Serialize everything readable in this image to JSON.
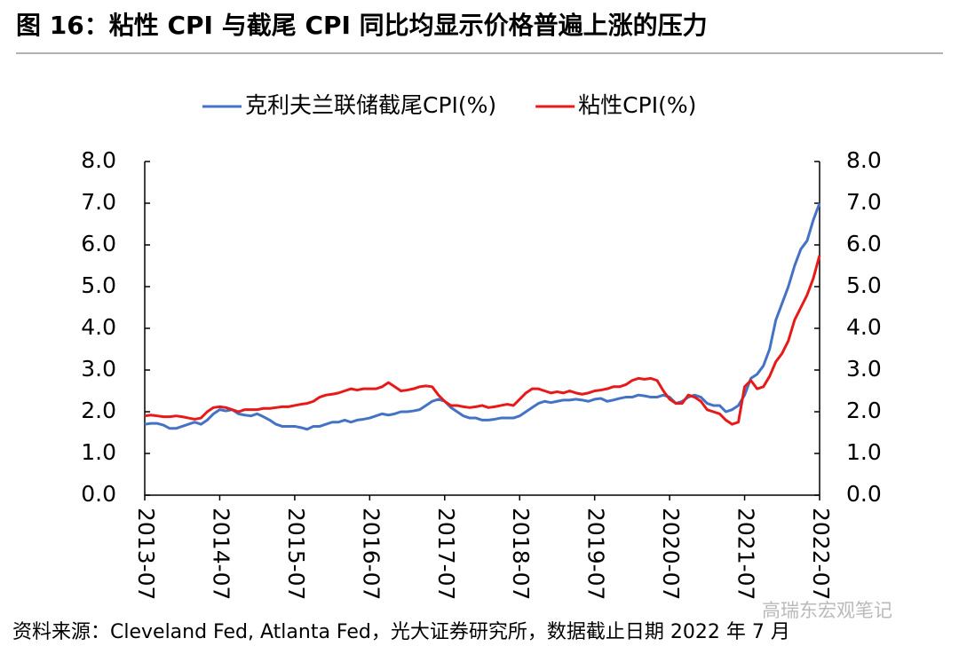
{
  "chart_data": {
    "type": "line",
    "title": "图 16：粘性 CPI 与截尾 CPI 同比均显示价格普遍上涨的压力",
    "source": "资料来源：Cleveland Fed, Atlanta Fed，光大证券研究所，数据截止日期 2022 年 7 月",
    "watermark": "高瑞东宏观笔记",
    "categories": [
      "2013-07",
      null,
      null,
      null,
      null,
      null,
      null,
      null,
      null,
      null,
      null,
      null,
      "2014-07",
      null,
      null,
      null,
      null,
      null,
      null,
      null,
      null,
      null,
      null,
      null,
      "2015-07",
      null,
      null,
      null,
      null,
      null,
      null,
      null,
      null,
      null,
      null,
      null,
      "2016-07",
      null,
      null,
      null,
      null,
      null,
      null,
      null,
      null,
      null,
      null,
      null,
      "2017-07",
      null,
      null,
      null,
      null,
      null,
      null,
      null,
      null,
      null,
      null,
      null,
      "2018-07",
      null,
      null,
      null,
      null,
      null,
      null,
      null,
      null,
      null,
      null,
      null,
      "2019-07",
      null,
      null,
      null,
      null,
      null,
      null,
      null,
      null,
      null,
      null,
      null,
      "2020-07",
      null,
      null,
      null,
      null,
      null,
      null,
      null,
      null,
      null,
      null,
      null,
      "2021-07",
      null,
      null,
      null,
      null,
      null,
      null,
      null,
      null,
      null,
      null,
      null,
      "2022-07"
    ],
    "series": [
      {
        "name": "克利夫兰联储截尾CPI(%)",
        "color": "#4472c4",
        "values": [
          1.7,
          1.72,
          1.72,
          1.68,
          1.6,
          1.6,
          1.65,
          1.7,
          1.75,
          1.7,
          1.8,
          1.95,
          2.05,
          2.02,
          2.05,
          1.95,
          1.92,
          1.9,
          1.95,
          1.88,
          1.8,
          1.7,
          1.65,
          1.65,
          1.65,
          1.62,
          1.58,
          1.65,
          1.65,
          1.7,
          1.75,
          1.75,
          1.8,
          1.75,
          1.8,
          1.82,
          1.85,
          1.9,
          1.95,
          1.92,
          1.95,
          2.0,
          2.0,
          2.02,
          2.05,
          2.15,
          2.25,
          2.3,
          2.25,
          2.1,
          2.0,
          1.9,
          1.85,
          1.85,
          1.8,
          1.8,
          1.82,
          1.85,
          1.85,
          1.85,
          1.9,
          2.0,
          2.1,
          2.2,
          2.25,
          2.22,
          2.25,
          2.28,
          2.28,
          2.3,
          2.28,
          2.25,
          2.3,
          2.32,
          2.25,
          2.28,
          2.32,
          2.35,
          2.35,
          2.4,
          2.38,
          2.35,
          2.35,
          2.4,
          2.35,
          2.2,
          2.25,
          2.35,
          2.4,
          2.35,
          2.2,
          2.15,
          2.15,
          2.0,
          2.05,
          2.15,
          2.4,
          2.8,
          2.9,
          3.1,
          3.5,
          4.2,
          4.6,
          5.0,
          5.5,
          5.9,
          6.1,
          6.6,
          7.0
        ]
      },
      {
        "name": "粘性CPI(%)",
        "color": "#e81919",
        "values": [
          1.9,
          1.92,
          1.9,
          1.88,
          1.88,
          1.9,
          1.88,
          1.85,
          1.82,
          1.85,
          2.0,
          2.1,
          2.12,
          2.1,
          2.05,
          2.0,
          2.05,
          2.05,
          2.05,
          2.08,
          2.08,
          2.1,
          2.12,
          2.12,
          2.15,
          2.18,
          2.2,
          2.25,
          2.35,
          2.4,
          2.42,
          2.45,
          2.5,
          2.55,
          2.52,
          2.55,
          2.55,
          2.55,
          2.6,
          2.7,
          2.6,
          2.5,
          2.52,
          2.55,
          2.6,
          2.62,
          2.6,
          2.4,
          2.25,
          2.15,
          2.15,
          2.12,
          2.1,
          2.12,
          2.15,
          2.1,
          2.12,
          2.15,
          2.18,
          2.15,
          2.3,
          2.45,
          2.55,
          2.55,
          2.5,
          2.45,
          2.48,
          2.45,
          2.5,
          2.45,
          2.42,
          2.45,
          2.5,
          2.52,
          2.55,
          2.6,
          2.6,
          2.65,
          2.75,
          2.8,
          2.78,
          2.8,
          2.75,
          2.5,
          2.3,
          2.2,
          2.2,
          2.4,
          2.35,
          2.25,
          2.05,
          2.0,
          1.95,
          1.8,
          1.7,
          1.75,
          2.6,
          2.75,
          2.55,
          2.6,
          2.85,
          3.2,
          3.4,
          3.7,
          4.2,
          4.5,
          4.8,
          5.2,
          5.75
        ]
      }
    ],
    "ylim": [
      0,
      8
    ],
    "yticks": [
      {
        "value": 0,
        "label": "0.0"
      },
      {
        "value": 1,
        "label": "1.0"
      },
      {
        "value": 2,
        "label": "2.0"
      },
      {
        "value": 3,
        "label": "3.0"
      },
      {
        "value": 4,
        "label": "4.0"
      },
      {
        "value": 5,
        "label": "5.0"
      },
      {
        "value": 6,
        "label": "6.0"
      },
      {
        "value": 7,
        "label": "7.0"
      },
      {
        "value": 8,
        "label": "8.0"
      }
    ],
    "y2lim": [
      0,
      8
    ],
    "y2ticks": [
      {
        "value": 0,
        "label": "0.0"
      },
      {
        "value": 1,
        "label": "1.0"
      },
      {
        "value": 2,
        "label": "2.0"
      },
      {
        "value": 3,
        "label": "3.0"
      },
      {
        "value": 4,
        "label": "4.0"
      },
      {
        "value": 5,
        "label": "5.0"
      },
      {
        "value": 6,
        "label": "6.0"
      },
      {
        "value": 7,
        "label": "7.0"
      },
      {
        "value": 8,
        "label": "8.0"
      }
    ],
    "grid": false,
    "legend": "top"
  }
}
